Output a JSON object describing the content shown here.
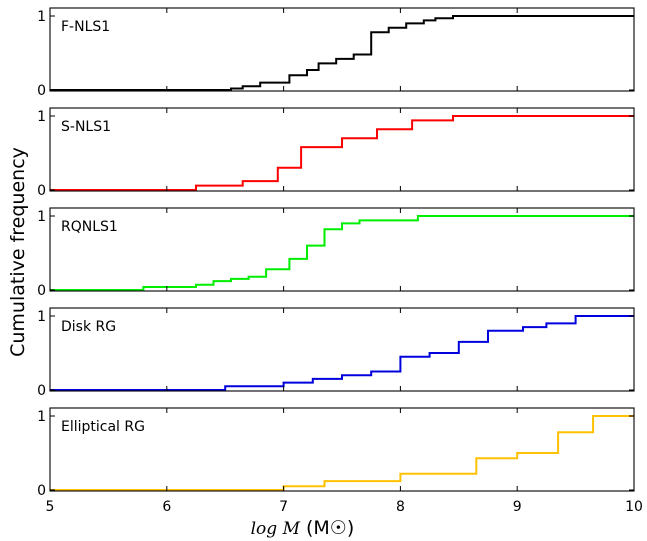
{
  "chart_data": {
    "type": "line",
    "ylabel": "Cumulative frequency",
    "xlabel_math": "log M",
    "xlabel_unit": "(M☉)",
    "xlim": [
      5,
      10
    ],
    "x_ticks": [
      "5",
      "6",
      "7",
      "8",
      "9",
      "10"
    ],
    "ylim": [
      0,
      1
    ],
    "y_ticks": [
      "0",
      "1"
    ],
    "series": [
      {
        "name": "F-NLS1",
        "color": "#000000",
        "x": [
          5,
          6.55,
          6.65,
          6.8,
          7.05,
          7.2,
          7.3,
          7.45,
          7.6,
          7.75,
          7.9,
          8.05,
          8.2,
          8.3,
          8.45,
          10
        ],
        "y": [
          0,
          0.02,
          0.05,
          0.1,
          0.2,
          0.27,
          0.36,
          0.42,
          0.48,
          0.78,
          0.84,
          0.9,
          0.94,
          0.97,
          1.0,
          1.0
        ]
      },
      {
        "name": "S-NLS1",
        "color": "#ff0000",
        "x": [
          5,
          6.25,
          6.65,
          6.95,
          7.15,
          7.5,
          7.8,
          8.1,
          8.45,
          10
        ],
        "y": [
          0,
          0.06,
          0.12,
          0.3,
          0.58,
          0.7,
          0.82,
          0.94,
          1.0,
          1.0
        ]
      },
      {
        "name": "RQNLS1",
        "color": "#00ee00",
        "x": [
          5,
          5.8,
          6.25,
          6.4,
          6.55,
          6.7,
          6.85,
          7.05,
          7.2,
          7.35,
          7.5,
          7.65,
          8.15,
          10
        ],
        "y": [
          0,
          0.04,
          0.07,
          0.12,
          0.15,
          0.18,
          0.28,
          0.42,
          0.6,
          0.82,
          0.9,
          0.94,
          1.0,
          1.0
        ]
      },
      {
        "name": "Disk RG",
        "color": "#0000dd",
        "x": [
          5,
          6.5,
          7.0,
          7.25,
          7.5,
          7.75,
          8.0,
          8.25,
          8.5,
          8.75,
          9.05,
          9.25,
          9.5,
          10
        ],
        "y": [
          0,
          0.05,
          0.1,
          0.15,
          0.2,
          0.25,
          0.45,
          0.5,
          0.65,
          0.8,
          0.85,
          0.9,
          1.0,
          1.0
        ]
      },
      {
        "name": "Elliptical RG",
        "color": "#ffc000",
        "x": [
          5,
          7.0,
          7.35,
          8.0,
          8.65,
          9.0,
          9.35,
          9.65,
          10
        ],
        "y": [
          0,
          0.05,
          0.12,
          0.22,
          0.43,
          0.5,
          0.78,
          1.0,
          1.0
        ]
      }
    ]
  }
}
